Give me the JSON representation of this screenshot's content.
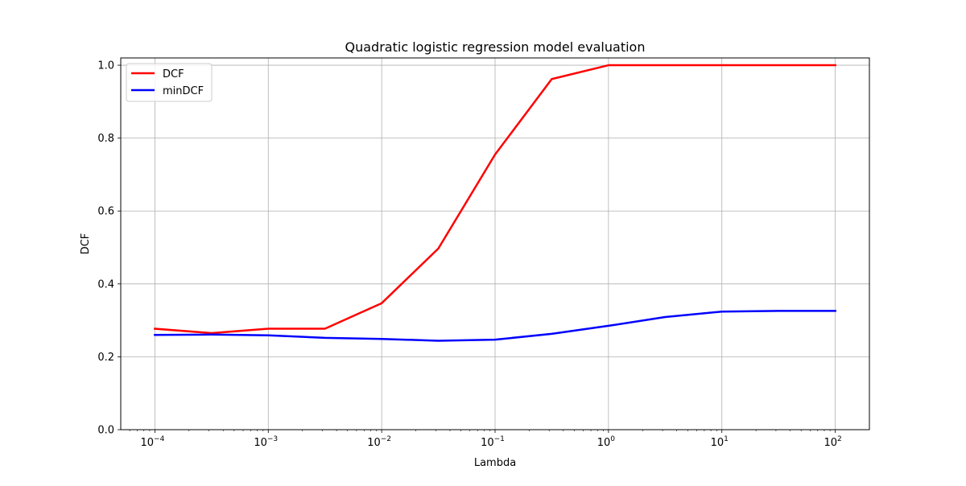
{
  "chart_data": {
    "type": "line",
    "title": "Quadratic logistic regression model evaluation",
    "xlabel": "Lambda",
    "ylabel": "DCF",
    "xscale": "log",
    "xlim": [
      5e-05,
      200
    ],
    "ylim": [
      0,
      1.02
    ],
    "grid": true,
    "legend_position": "top-left",
    "x": [
      0.0001,
      0.000316,
      0.001,
      0.00316,
      0.01,
      0.0316,
      0.1,
      0.316,
      1,
      3.16,
      10,
      31.6,
      100
    ],
    "x_ticks": [
      {
        "value": 0.0001,
        "base": "10",
        "exp": "−4"
      },
      {
        "value": 0.001,
        "base": "10",
        "exp": "−3"
      },
      {
        "value": 0.01,
        "base": "10",
        "exp": "−2"
      },
      {
        "value": 0.1,
        "base": "10",
        "exp": "−1"
      },
      {
        "value": 1,
        "base": "10",
        "exp": "0"
      },
      {
        "value": 10,
        "base": "10",
        "exp": "1"
      },
      {
        "value": 100,
        "base": "10",
        "exp": "2"
      }
    ],
    "y_ticks": [
      {
        "value": 0.0,
        "label": "0.0"
      },
      {
        "value": 0.2,
        "label": "0.2"
      },
      {
        "value": 0.4,
        "label": "0.4"
      },
      {
        "value": 0.6,
        "label": "0.6"
      },
      {
        "value": 0.8,
        "label": "0.8"
      },
      {
        "value": 1.0,
        "label": "1.0"
      }
    ],
    "series": [
      {
        "name": "DCF",
        "color": "#ff0000",
        "values": [
          0.277,
          0.265,
          0.277,
          0.277,
          0.347,
          0.497,
          0.755,
          0.962,
          1.0,
          1.0,
          1.0,
          1.0,
          1.0
        ]
      },
      {
        "name": "minDCF",
        "color": "#0000ff",
        "values": [
          0.26,
          0.261,
          0.259,
          0.252,
          0.249,
          0.244,
          0.247,
          0.263,
          0.285,
          0.309,
          0.324,
          0.326,
          0.326
        ]
      }
    ]
  }
}
